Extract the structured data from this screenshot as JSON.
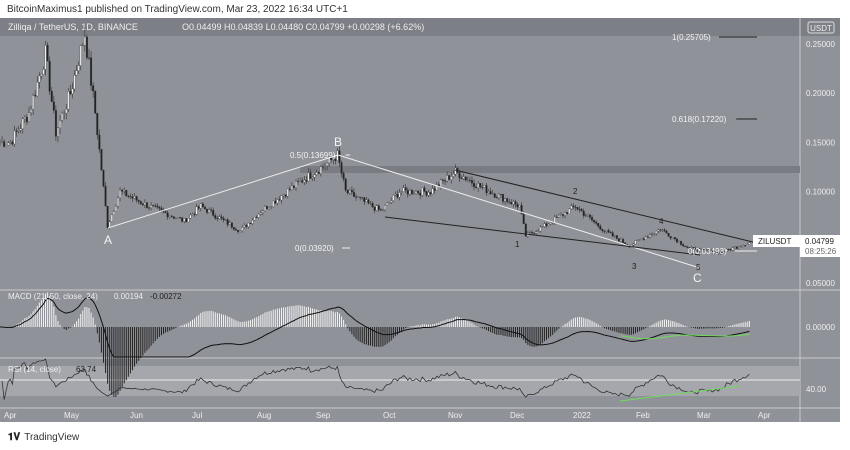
{
  "header": {
    "published": "BitcoinMaximus1 published on TradingView.com, Mar 23, 2022 16:34 UTC+1",
    "symbol": "Zilliqa / TetherUS, 1D, BINANCE",
    "ohlc": "O0.04499  H0.04839  L0.04480  C0.04799  +0.00298 (+6.62%)"
  },
  "price_axis": {
    "currency": "USDT",
    "ticks": [
      "0.25000",
      "0.20000",
      "0.15000",
      "0.10000",
      "0.05000"
    ],
    "last_symbol": "ZILUSDT",
    "last_price": "0.04799",
    "countdown": "08:25:26"
  },
  "macd": {
    "label": "MACD (21, 50, close, 24)",
    "value1": "0.00194",
    "value2": "-0.00272",
    "tick": "0.00000"
  },
  "rsi": {
    "label": "RSI (14, close)",
    "value": "63.74",
    "tick": "40.00"
  },
  "time_axis": [
    "Apr",
    "May",
    "Jun",
    "Jul",
    "Aug",
    "Sep",
    "Oct",
    "Nov",
    "Dec",
    "2022",
    "Feb",
    "Mar",
    "Apr"
  ],
  "annotations": {
    "fib1": "1(0.25705)",
    "fib618": "0.618(0.17220)",
    "fib05": "0.5(0.13699)",
    "fib0": "0(0.03920)",
    "fib0b": "0(0.03493)",
    "waves": [
      "A",
      "B",
      "C",
      "1",
      "2",
      "3",
      "4",
      "5"
    ]
  },
  "footer": {
    "brand": "TradingView"
  },
  "colors": {
    "bg": "#909299",
    "up": "#f0f0f0",
    "down": "#222222",
    "signal_green": "#6fdc5a"
  },
  "chart_data": {
    "type": "candlestick",
    "title": "Zilliqa / TetherUS, 1D, BINANCE",
    "ylabel": "USDT",
    "ylim": [
      0,
      0.27
    ],
    "keypoints_day_price": [
      [
        0,
        0.15
      ],
      [
        5,
        0.15
      ],
      [
        14,
        0.18
      ],
      [
        22,
        0.24
      ],
      [
        27,
        0.16
      ],
      [
        34,
        0.2
      ],
      [
        41,
        0.26
      ],
      [
        46,
        0.18
      ],
      [
        52,
        0.065
      ],
      [
        58,
        0.1
      ],
      [
        72,
        0.085
      ],
      [
        89,
        0.07
      ],
      [
        97,
        0.085
      ],
      [
        116,
        0.06
      ],
      [
        126,
        0.08
      ],
      [
        145,
        0.11
      ],
      [
        159,
        0.13
      ],
      [
        163,
        0.137
      ],
      [
        167,
        0.1
      ],
      [
        184,
        0.08
      ],
      [
        193,
        0.1
      ],
      [
        208,
        0.1
      ],
      [
        220,
        0.12
      ],
      [
        232,
        0.105
      ],
      [
        251,
        0.085
      ],
      [
        254,
        0.055
      ],
      [
        263,
        0.065
      ],
      [
        278,
        0.085
      ],
      [
        292,
        0.06
      ],
      [
        304,
        0.045
      ],
      [
        319,
        0.062
      ],
      [
        333,
        0.042
      ],
      [
        348,
        0.038
      ],
      [
        362,
        0.048
      ]
    ],
    "levels": [
      0.25705,
      0.1722,
      0.13699,
      0.0392,
      0.03493
    ],
    "resistance_zone": [
      0.118,
      0.125
    ]
  }
}
